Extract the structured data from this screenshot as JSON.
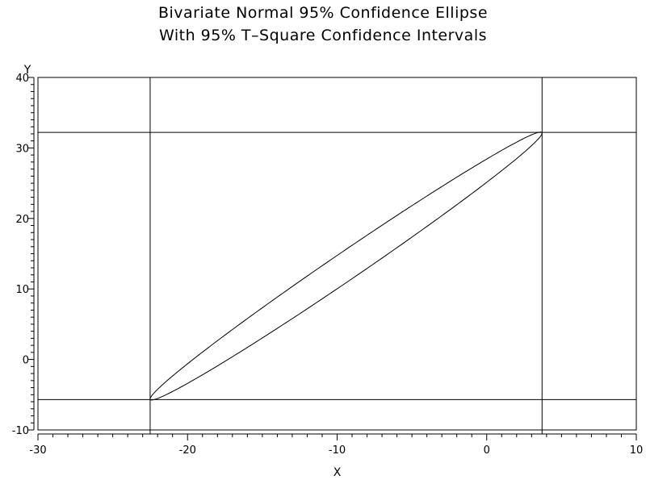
{
  "chart_data": {
    "type": "scatter",
    "title": "Bivariate Normal 95% Confidence Ellipse",
    "subtitle": "With 95% T–Square Confidence Intervals",
    "xlabel": "X",
    "ylabel": "Y",
    "xlim": [
      -30,
      10
    ],
    "ylim": [
      -10,
      40
    ],
    "x_ticks": [
      -30,
      -20,
      -10,
      0,
      10
    ],
    "y_ticks": [
      -10,
      0,
      10,
      20,
      30,
      40
    ],
    "x_minor_step": 1,
    "y_minor_step": 1,
    "grid": false,
    "series": [
      {
        "kind": "ellipse",
        "center": [
          -9.4,
          13.25
        ],
        "rx_axis_extent": 13.1,
        "ry_axis_extent": 19.0,
        "slope": 0.0138,
        "color": "#000000"
      }
    ],
    "reference_lines": {
      "vertical_x": [
        -22.5,
        3.7
      ],
      "horizontal_y": [
        -5.7,
        32.2
      ]
    }
  }
}
